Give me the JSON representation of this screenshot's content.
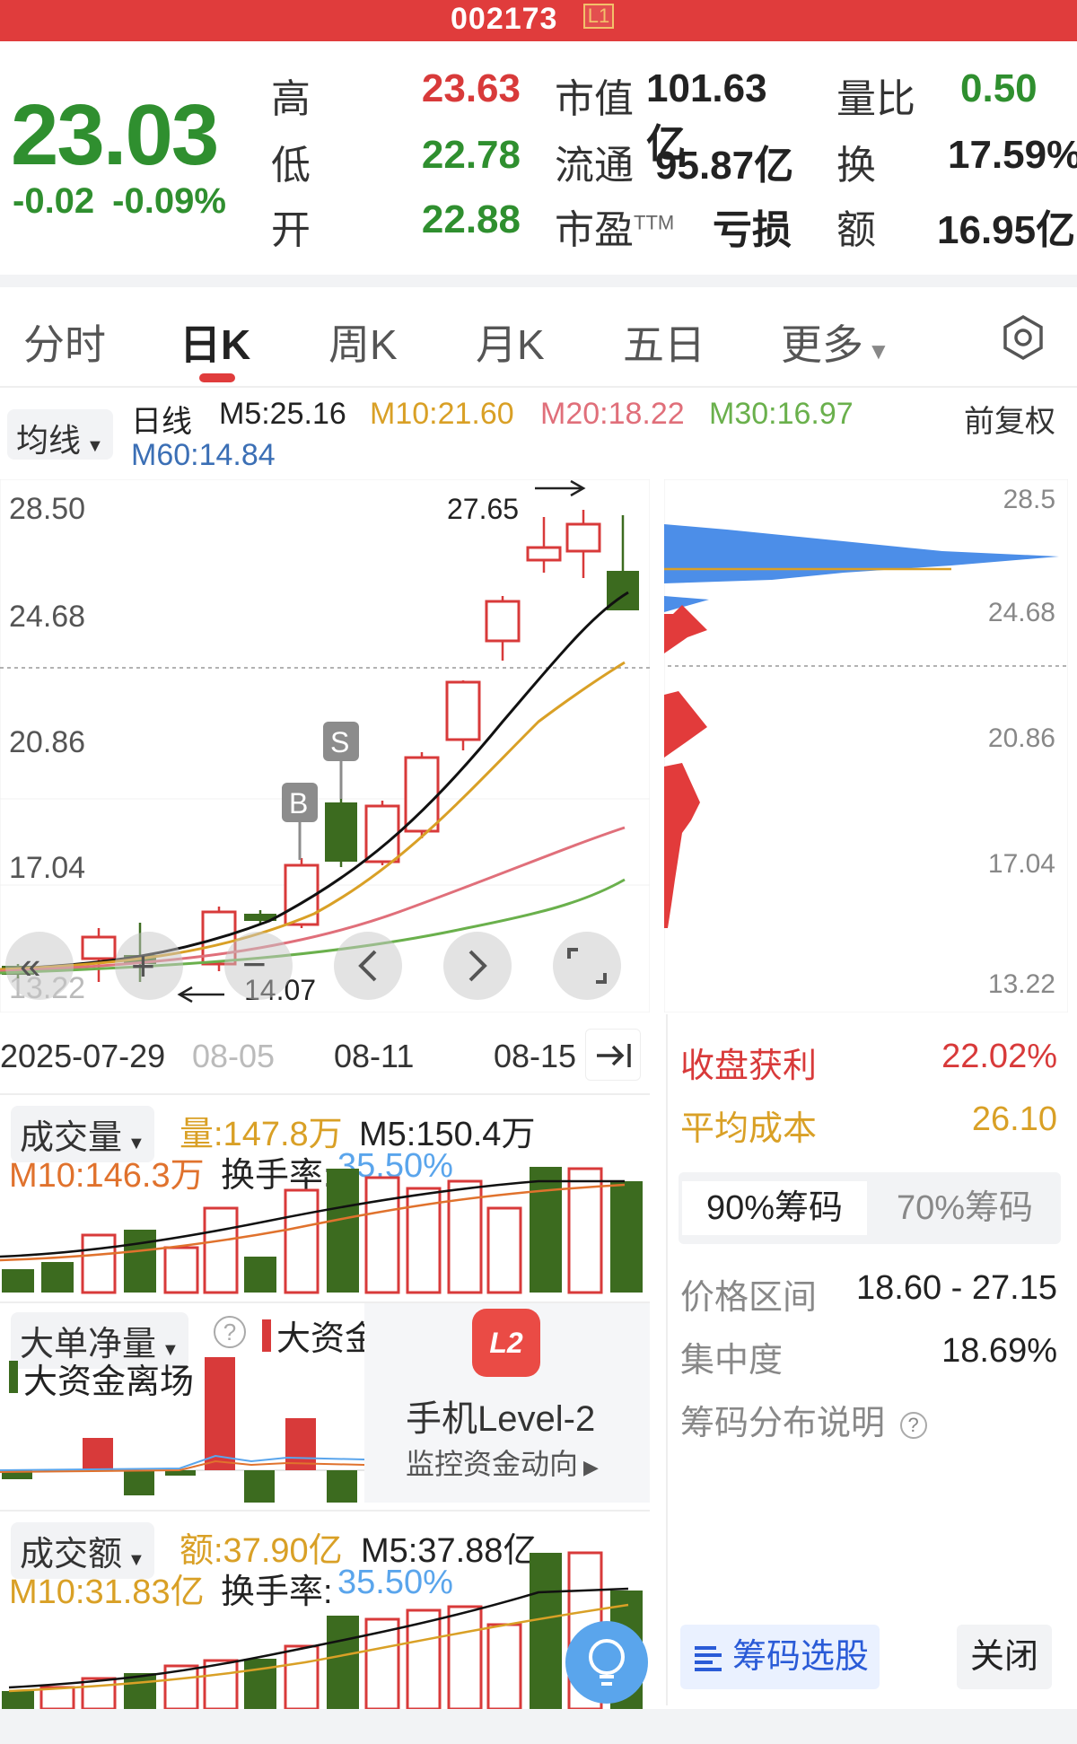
{
  "header": {
    "code": "002173",
    "level_badge": "L1"
  },
  "quote": {
    "price": "23.03",
    "change": "-0.02",
    "change_pct": "-0.09%",
    "rows": [
      {
        "label": "高",
        "value": "23.63",
        "label2": "市值",
        "value2": "101.63亿",
        "label3": "量比",
        "value3": "0.50"
      },
      {
        "label": "低",
        "value": "22.78",
        "label2": "流通",
        "value2": "95.87亿",
        "label3": "换",
        "value3": "17.59%"
      },
      {
        "label": "开",
        "value": "22.88",
        "label2": "市盈TTM",
        "value2": "亏损",
        "label3": "额",
        "value3": "16.95亿"
      }
    ]
  },
  "tabs": [
    "分时",
    "日K",
    "周K",
    "月K",
    "五日",
    "更多"
  ],
  "ma": {
    "dropdown": "均线",
    "type": "日线",
    "m5": "M5:25.16",
    "m10": "M10:21.60",
    "m20": "M20:18.22",
    "m30": "M30:16.97",
    "m60": "M60:14.84",
    "adjust": "前复权"
  },
  "kline": {
    "y_labels": [
      "28.50",
      "24.68",
      "20.86",
      "17.04",
      "13.22"
    ],
    "high_label": "27.65",
    "low_label": "14.07",
    "buy_marker": "B",
    "sell_marker": "S",
    "dates": [
      "2025-07-29",
      "08-05",
      "08-11",
      "08-15"
    ],
    "colors": {
      "up": "#d83a3a",
      "down": "#3c6b1f"
    }
  },
  "chip": {
    "y_labels": [
      "28.5",
      "24.68",
      "20.86",
      "17.04",
      "13.22"
    ],
    "profit_label": "收盘获利",
    "profit_value": "22.02%",
    "cost_label": "平均成本",
    "cost_value": "26.10",
    "tab_active": "90%筹码",
    "tab_inactive": "70%筹码",
    "range_label": "价格区间",
    "range_value": "18.60 - 27.15",
    "conc_label": "集中度",
    "conc_value": "18.69%",
    "explain": "筹码分布说明",
    "select_button": "筹码选股",
    "close_button": "关闭"
  },
  "volume": {
    "dropdown": "成交量",
    "vol": "量:147.8万",
    "m5": "M5:150.4万",
    "m10": "M10:146.3万",
    "turnover_label": "换手率:",
    "turnover": "35.50%"
  },
  "flow": {
    "dropdown": "大单净量",
    "in_label": "大资金进场",
    "out_label": "大资金离场",
    "l2_icon": "L2",
    "l2_title": "手机Level-2",
    "l2_sub": "监控资金动向"
  },
  "amount": {
    "dropdown": "成交额",
    "amt": "额:37.90亿",
    "m5": "M5:37.88亿",
    "m10": "M10:31.83亿",
    "turnover_label": "换手率:",
    "turnover": "35.50%"
  }
}
